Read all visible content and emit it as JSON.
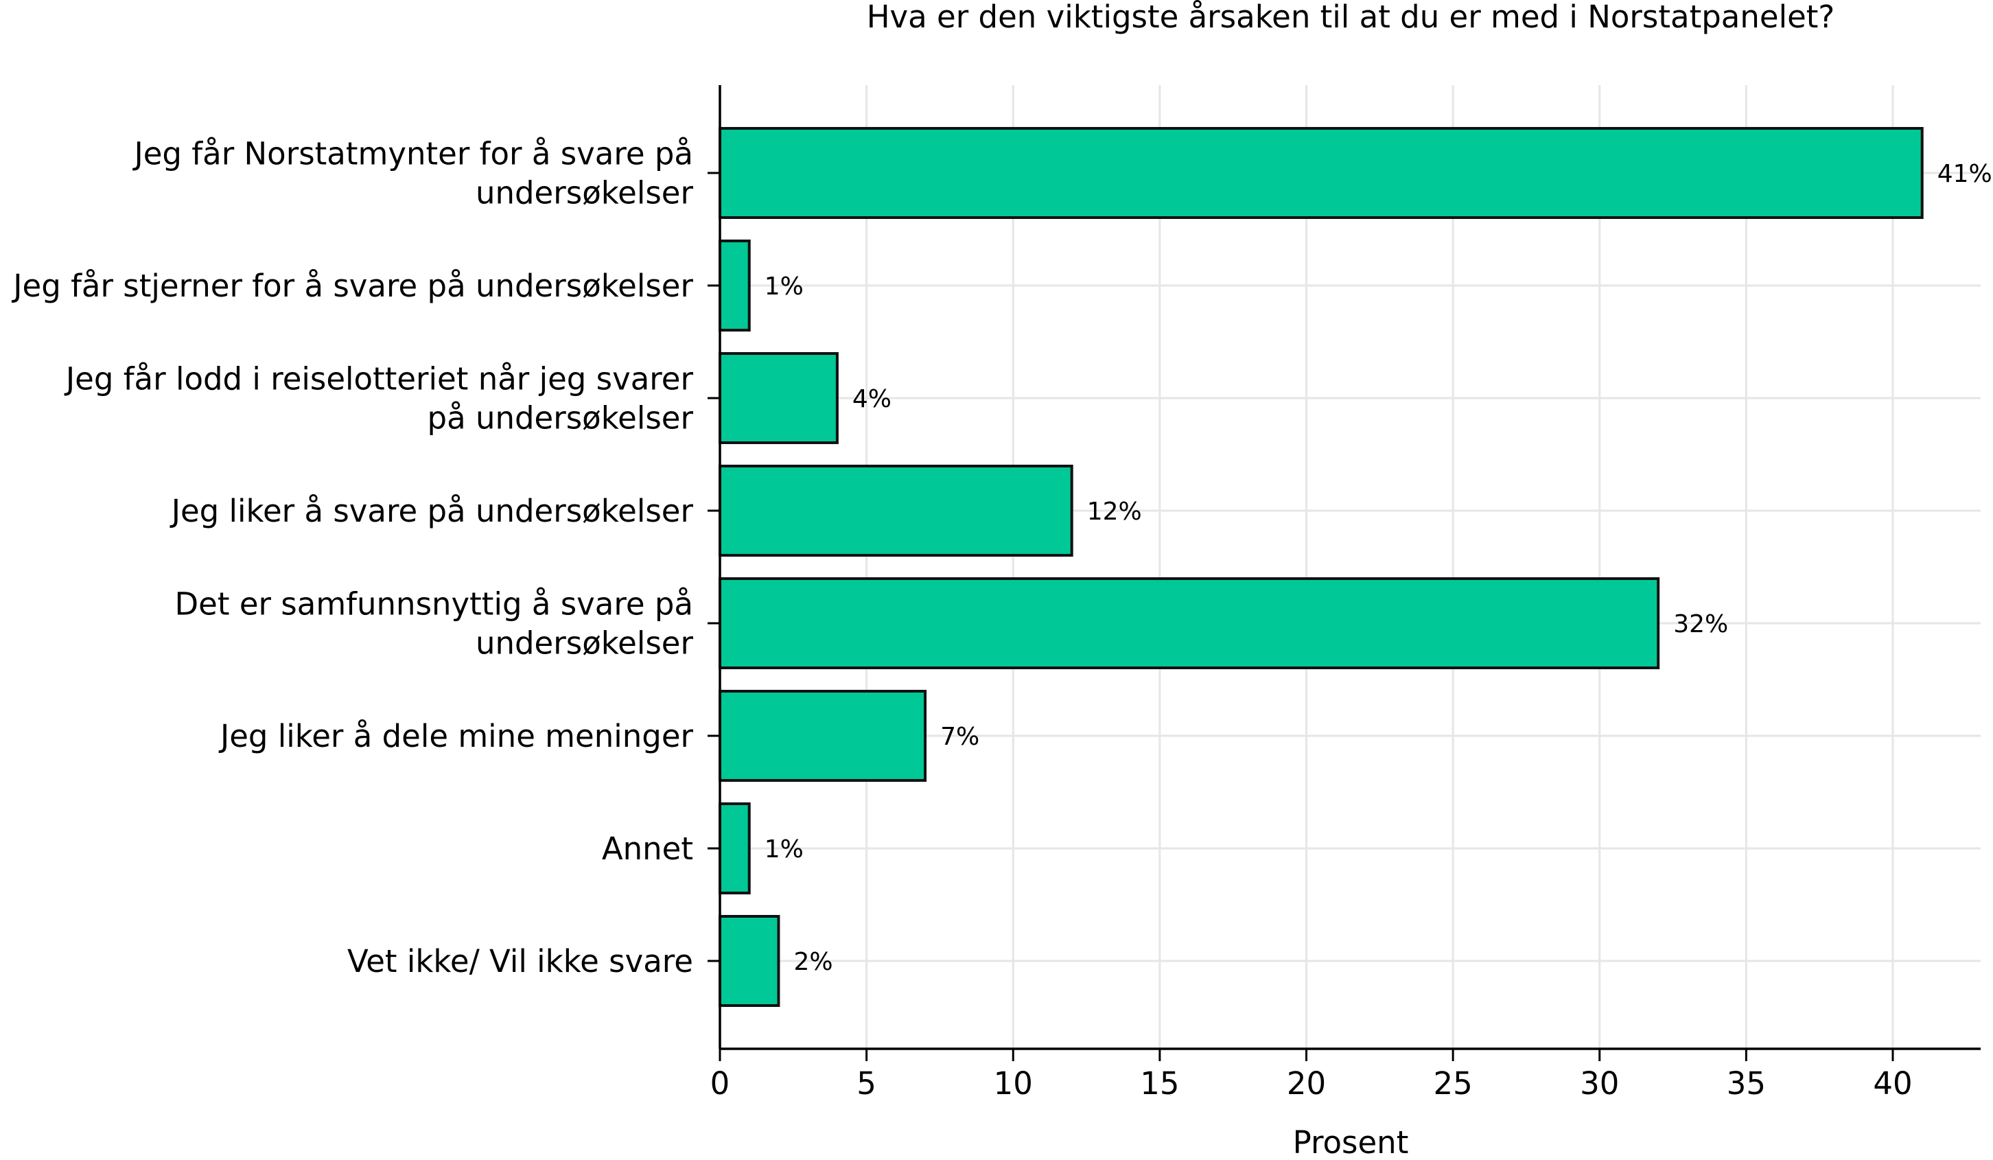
{
  "chart_data": {
    "type": "bar",
    "orientation": "horizontal",
    "title": "Hva er den viktigste årsaken til at du er med i Norstatpanelet?",
    "xlabel": "Prosent",
    "ylabel": "",
    "xlim": [
      0,
      43
    ],
    "xticks": [
      0,
      5,
      10,
      15,
      20,
      25,
      30,
      35,
      40
    ],
    "grid": true,
    "legend": "none",
    "categories": [
      "Jeg får Norstatmynter for å svare på\nundersøkelser",
      "Jeg får stjerner for å svare på undersøkelser",
      "Jeg får lodd i reiselotteriet når jeg svarer\npå undersøkelser",
      "Jeg liker å svare på undersøkelser",
      "Det er samfunnsnyttig å svare på\nundersøkelser",
      "Jeg liker å dele mine meninger",
      "Annet",
      "Vet ikke/ Vil ikke svare"
    ],
    "values": [
      41,
      1,
      4,
      12,
      32,
      7,
      1,
      2
    ],
    "value_labels": [
      "41%",
      "1%",
      "4%",
      "12%",
      "32%",
      "7%",
      "1%",
      "2%"
    ],
    "bar_color": "#00c896",
    "bar_edge_color": "#111111",
    "grid_color": "#e6e6e6"
  }
}
